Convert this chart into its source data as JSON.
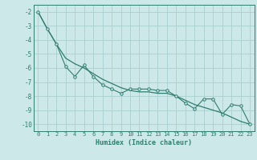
{
  "smooth_x": [
    0,
    1,
    2,
    3,
    4,
    5,
    6,
    7,
    8,
    9,
    10,
    11,
    12,
    13,
    14,
    15,
    16,
    17,
    18,
    19,
    20,
    21,
    22,
    23
  ],
  "smooth_y": [
    -2.0,
    -3.2,
    -4.3,
    -5.3,
    -5.7,
    -6.0,
    -6.4,
    -6.8,
    -7.1,
    -7.4,
    -7.6,
    -7.7,
    -7.7,
    -7.8,
    -7.8,
    -8.0,
    -8.3,
    -8.6,
    -8.8,
    -9.0,
    -9.2,
    -9.5,
    -9.8,
    -10.0
  ],
  "jagged_x": [
    0,
    1,
    2,
    3,
    4,
    5,
    6,
    7,
    8,
    9,
    10,
    11,
    12,
    13,
    14,
    15,
    16,
    17,
    18,
    19,
    20,
    21,
    22,
    23
  ],
  "jagged_y": [
    -2.0,
    -3.2,
    -4.3,
    -5.9,
    -6.6,
    -5.8,
    -6.6,
    -7.2,
    -7.5,
    -7.8,
    -7.5,
    -7.5,
    -7.5,
    -7.6,
    -7.6,
    -8.0,
    -8.5,
    -8.9,
    -8.2,
    -8.2,
    -9.3,
    -8.6,
    -8.7,
    -10.0
  ],
  "line_color": "#2e7d6e",
  "bg_color": "#cce8e8",
  "grid_color": "#aacfcf",
  "xlabel": "Humidex (Indice chaleur)",
  "ylim": [
    -10.5,
    -1.5
  ],
  "xlim": [
    -0.5,
    23.5
  ],
  "yticks": [
    -2,
    -3,
    -4,
    -5,
    -6,
    -7,
    -8,
    -9,
    -10
  ],
  "xticks": [
    0,
    1,
    2,
    3,
    4,
    5,
    6,
    7,
    8,
    9,
    10,
    11,
    12,
    13,
    14,
    15,
    16,
    17,
    18,
    19,
    20,
    21,
    22,
    23
  ],
  "marker": "o",
  "marker_size": 2.5
}
